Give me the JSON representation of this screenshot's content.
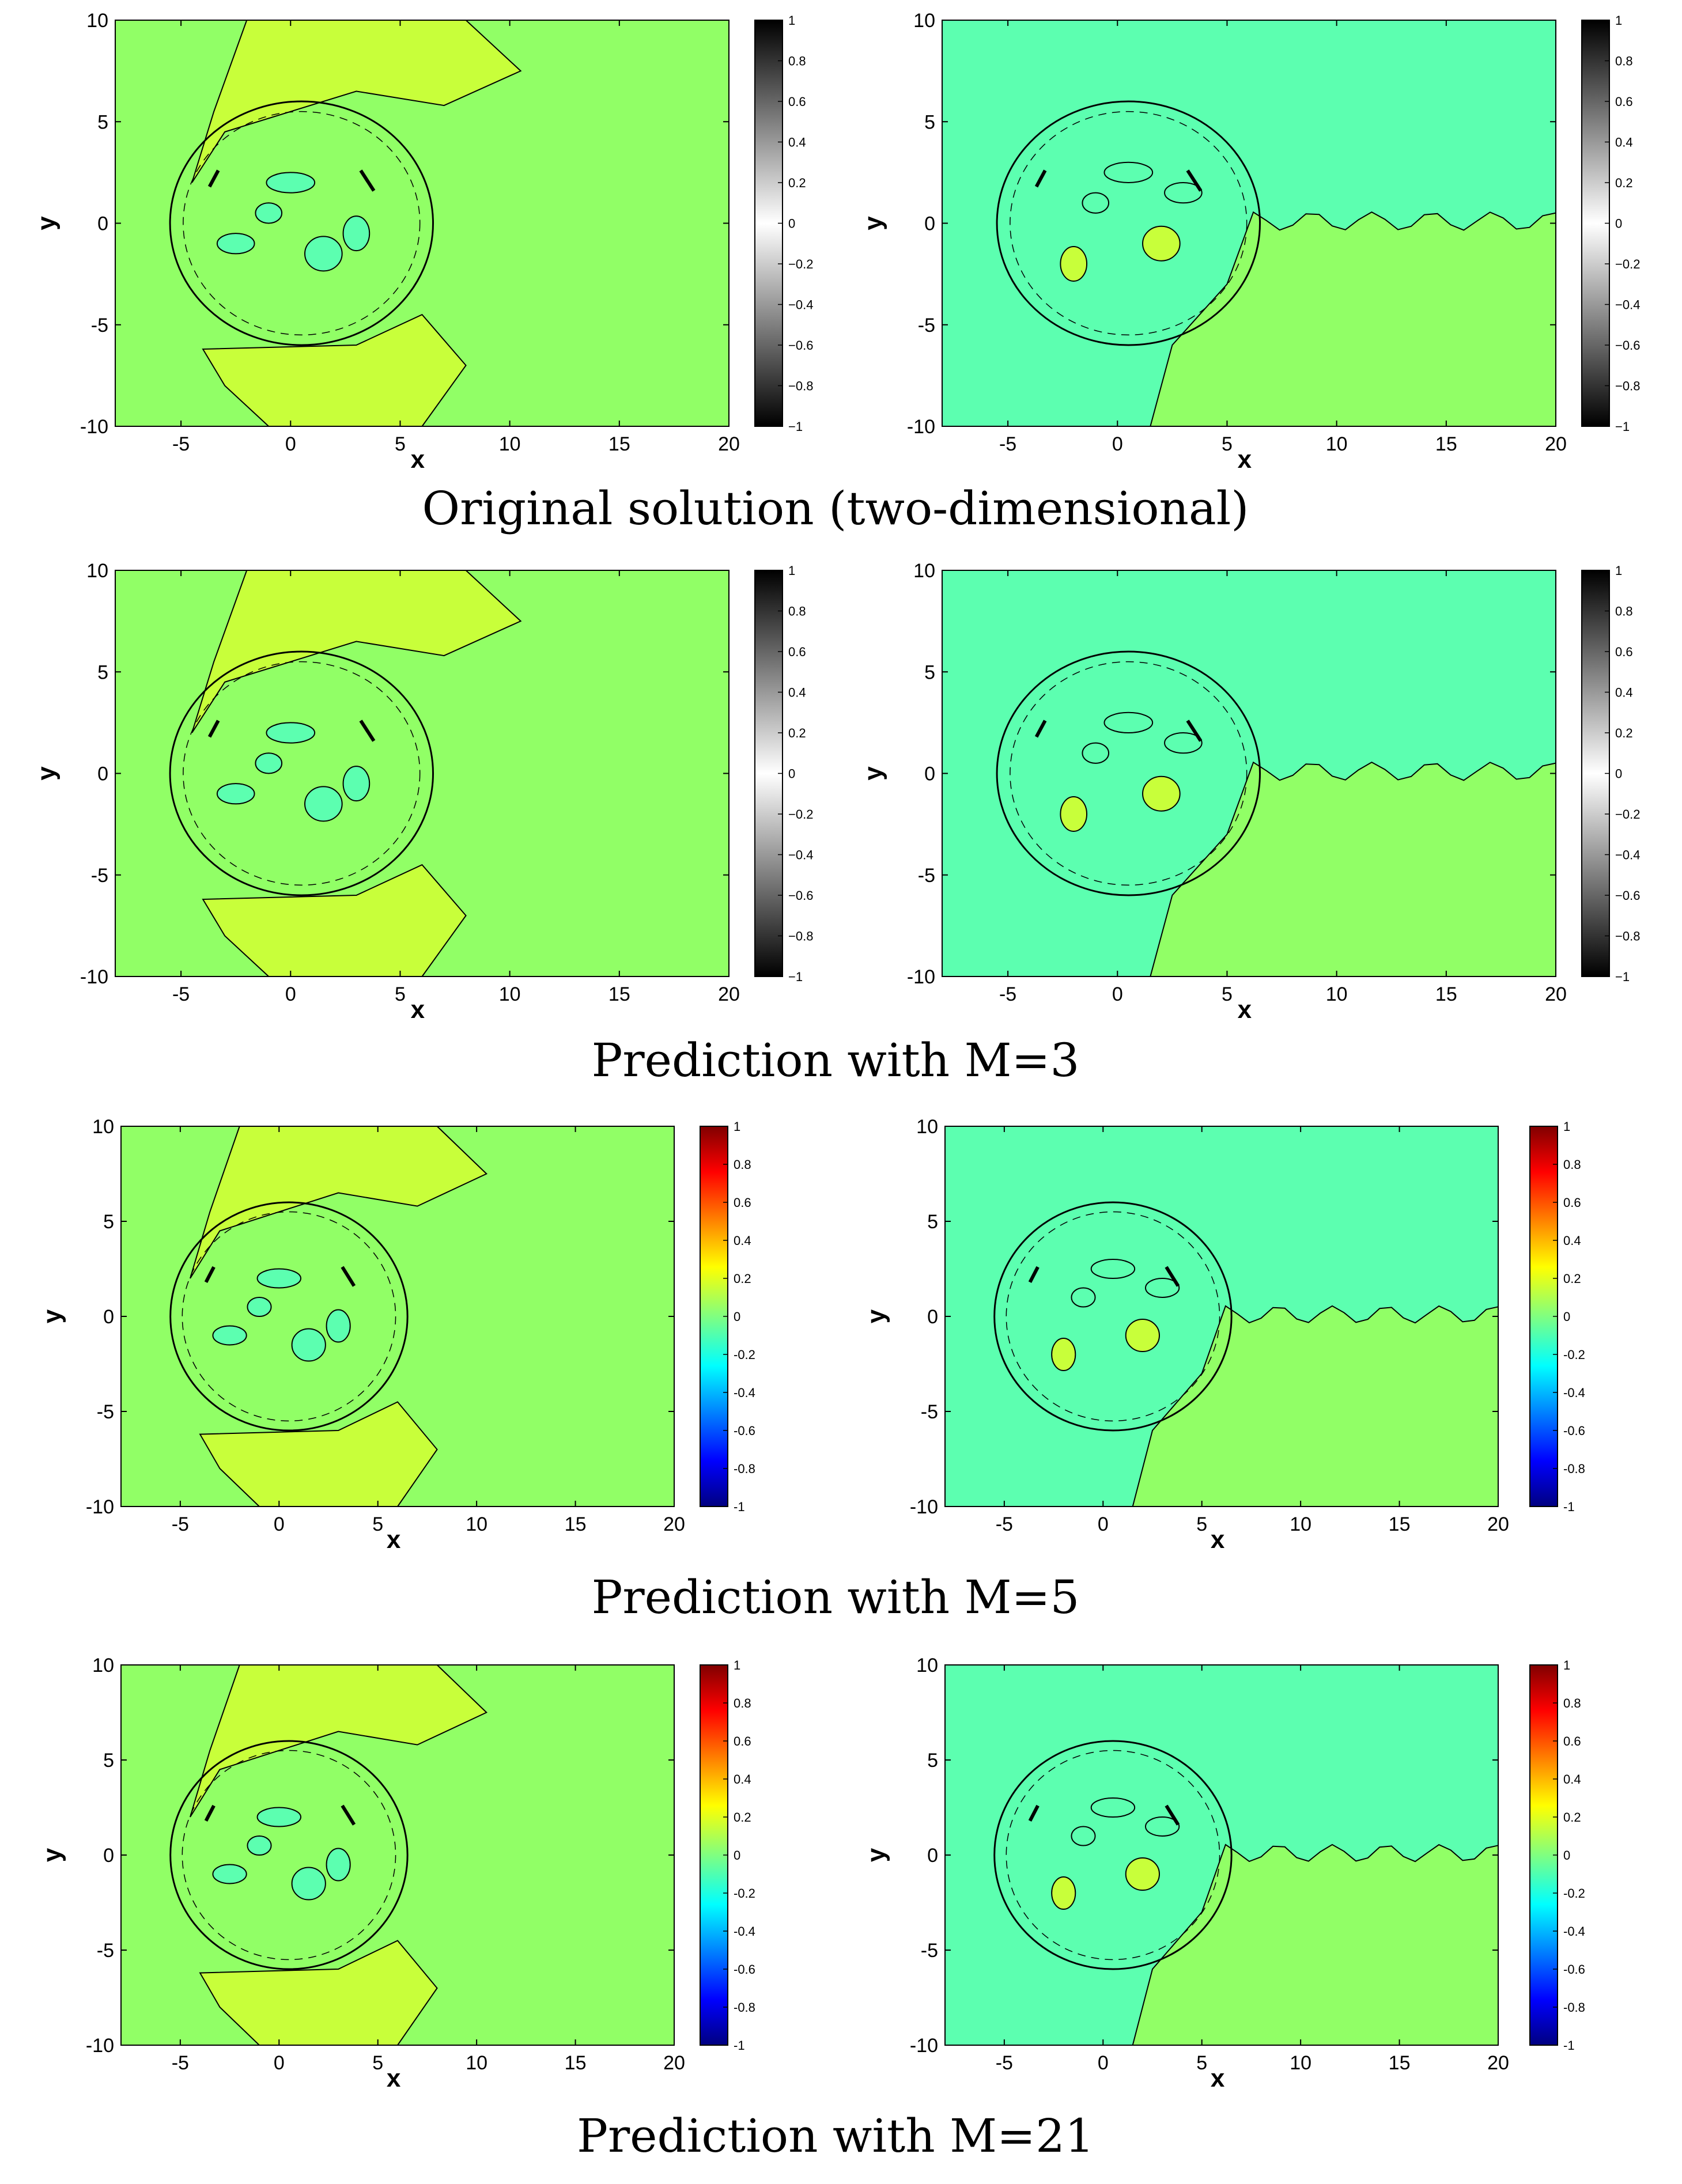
{
  "figure": {
    "rows": [
      {
        "caption": "Original solution (two-dimensional)",
        "colormap": "gray",
        "panels": [
          {
            "xlabel": "x",
            "ylabel": "y",
            "xlim": [
              -8,
              20
            ],
            "ylim": [
              -10,
              10
            ],
            "xticks": [
              -5,
              0,
              5,
              10,
              15,
              20
            ],
            "yticks": [
              -10,
              -5,
              0,
              5,
              10
            ],
            "colorbar_ticks": [
              "1",
              "0.8",
              "0.6",
              "0.4",
              "0.2",
              "0",
              "−0.2",
              "−0.4",
              "−0.6",
              "−0.8",
              "−1"
            ]
          },
          {
            "xlabel": "x",
            "ylabel": "y",
            "xlim": [
              -8,
              20
            ],
            "ylim": [
              -10,
              10
            ],
            "xticks": [
              -5,
              0,
              5,
              10,
              15,
              20
            ],
            "yticks": [
              -10,
              -5,
              0,
              5,
              10
            ],
            "colorbar_ticks": [
              "1",
              "0.8",
              "0.6",
              "0.4",
              "0.2",
              "0",
              "−0.2",
              "−0.4",
              "−0.6",
              "−0.8",
              "−1"
            ]
          }
        ]
      },
      {
        "caption": "Prediction with M=3",
        "colormap": "gray",
        "panels": [
          {
            "xlabel": "x",
            "ylabel": "y",
            "xlim": [
              -8,
              20
            ],
            "ylim": [
              -10,
              10
            ],
            "xticks": [
              -5,
              0,
              5,
              10,
              15,
              20
            ],
            "yticks": [
              -10,
              -5,
              0,
              5,
              10
            ],
            "colorbar_ticks": [
              "1",
              "0.8",
              "0.6",
              "0.4",
              "0.2",
              "0",
              "−0.2",
              "−0.4",
              "−0.6",
              "−0.8",
              "−1"
            ]
          },
          {
            "xlabel": "x",
            "ylabel": "y",
            "xlim": [
              -8,
              20
            ],
            "ylim": [
              -10,
              10
            ],
            "xticks": [
              -5,
              0,
              5,
              10,
              15,
              20
            ],
            "yticks": [
              -10,
              -5,
              0,
              5,
              10
            ],
            "colorbar_ticks": [
              "1",
              "0.8",
              "0.6",
              "0.4",
              "0.2",
              "0",
              "−0.2",
              "−0.4",
              "−0.6",
              "−0.8",
              "−1"
            ]
          }
        ]
      },
      {
        "caption": "Prediction with M=5",
        "colormap": "jet",
        "panels": [
          {
            "xlabel": "x",
            "ylabel": "y",
            "xlim": [
              -8,
              20
            ],
            "ylim": [
              -10,
              10
            ],
            "xticks": [
              -5,
              0,
              5,
              10,
              15,
              20
            ],
            "yticks": [
              -10,
              -5,
              0,
              5,
              10
            ],
            "colorbar_ticks": [
              "1",
              "0.8",
              "0.6",
              "0.4",
              "0.2",
              "0",
              "-0.2",
              "-0.4",
              "-0.6",
              "-0.8",
              "-1"
            ]
          },
          {
            "xlabel": "x",
            "ylabel": "y",
            "xlim": [
              -8,
              20
            ],
            "ylim": [
              -10,
              10
            ],
            "xticks": [
              -5,
              0,
              5,
              10,
              15,
              20
            ],
            "yticks": [
              -10,
              -5,
              0,
              5,
              10
            ],
            "colorbar_ticks": [
              "1",
              "0.8",
              "0.6",
              "0.4",
              "0.2",
              "0",
              "-0.2",
              "-0.4",
              "-0.6",
              "-0.8",
              "-1"
            ]
          }
        ]
      },
      {
        "caption": "Prediction with M=21",
        "colormap": "jet",
        "panels": [
          {
            "xlabel": "x",
            "ylabel": "y",
            "xlim": [
              -8,
              20
            ],
            "ylim": [
              -10,
              10
            ],
            "xticks": [
              -5,
              0,
              5,
              10,
              15,
              20
            ],
            "yticks": [
              -10,
              -5,
              0,
              5,
              10
            ],
            "colorbar_ticks": [
              "1",
              "0.8",
              "0.6",
              "0.4",
              "0.2",
              "0",
              "-0.2",
              "-0.4",
              "-0.6",
              "-0.8",
              "-1"
            ]
          },
          {
            "xlabel": "x",
            "ylabel": "y",
            "xlim": [
              -8,
              20
            ],
            "ylim": [
              -10,
              10
            ],
            "xticks": [
              -5,
              0,
              5,
              10,
              15,
              20
            ],
            "yticks": [
              -10,
              -5,
              0,
              5,
              10
            ],
            "colorbar_ticks": [
              "1",
              "0.8",
              "0.6",
              "0.4",
              "0.2",
              "0",
              "-0.2",
              "-0.4",
              "-0.6",
              "-0.8",
              "-1"
            ]
          }
        ]
      }
    ]
  },
  "colors": {
    "green_zero": "#91ff66",
    "yellow_pos": "#c8ff3a",
    "cyan_neg": "#5cffb0",
    "contour": "#000000"
  },
  "chart_data": [
    {
      "type": "heatmap",
      "title": "Original solution (two-dimensional) - left",
      "xlabel": "x",
      "ylabel": "y",
      "xlim": [
        -8,
        20
      ],
      "ylim": [
        -10,
        10
      ],
      "zlim": [
        -1,
        1
      ],
      "colormap": "gray"
    },
    {
      "type": "heatmap",
      "title": "Original solution (two-dimensional) - right",
      "xlabel": "x",
      "ylabel": "y",
      "xlim": [
        -8,
        20
      ],
      "ylim": [
        -10,
        10
      ],
      "zlim": [
        -1,
        1
      ],
      "colormap": "gray"
    },
    {
      "type": "heatmap",
      "title": "Prediction with M=3 - left",
      "xlabel": "x",
      "ylabel": "y",
      "xlim": [
        -8,
        20
      ],
      "ylim": [
        -10,
        10
      ],
      "zlim": [
        -1,
        1
      ],
      "colormap": "gray"
    },
    {
      "type": "heatmap",
      "title": "Prediction with M=3 - right",
      "xlabel": "x",
      "ylabel": "y",
      "xlim": [
        -8,
        20
      ],
      "ylim": [
        -10,
        10
      ],
      "zlim": [
        -1,
        1
      ],
      "colormap": "gray"
    },
    {
      "type": "heatmap",
      "title": "Prediction with M=5 - left",
      "xlabel": "x",
      "ylabel": "y",
      "xlim": [
        -8,
        20
      ],
      "ylim": [
        -10,
        10
      ],
      "zlim": [
        -1,
        1
      ],
      "colormap": "jet"
    },
    {
      "type": "heatmap",
      "title": "Prediction with M=5 - right",
      "xlabel": "x",
      "ylabel": "y",
      "xlim": [
        -8,
        20
      ],
      "ylim": [
        -10,
        10
      ],
      "zlim": [
        -1,
        1
      ],
      "colormap": "jet"
    },
    {
      "type": "heatmap",
      "title": "Prediction with M=21 - left",
      "xlabel": "x",
      "ylabel": "y",
      "xlim": [
        -8,
        20
      ],
      "ylim": [
        -10,
        10
      ],
      "zlim": [
        -1,
        1
      ],
      "colormap": "jet"
    },
    {
      "type": "heatmap",
      "title": "Prediction with M=21 - right",
      "xlabel": "x",
      "ylabel": "y",
      "xlim": [
        -8,
        20
      ],
      "ylim": [
        -10,
        10
      ],
      "zlim": [
        -1,
        1
      ],
      "colormap": "jet"
    }
  ]
}
